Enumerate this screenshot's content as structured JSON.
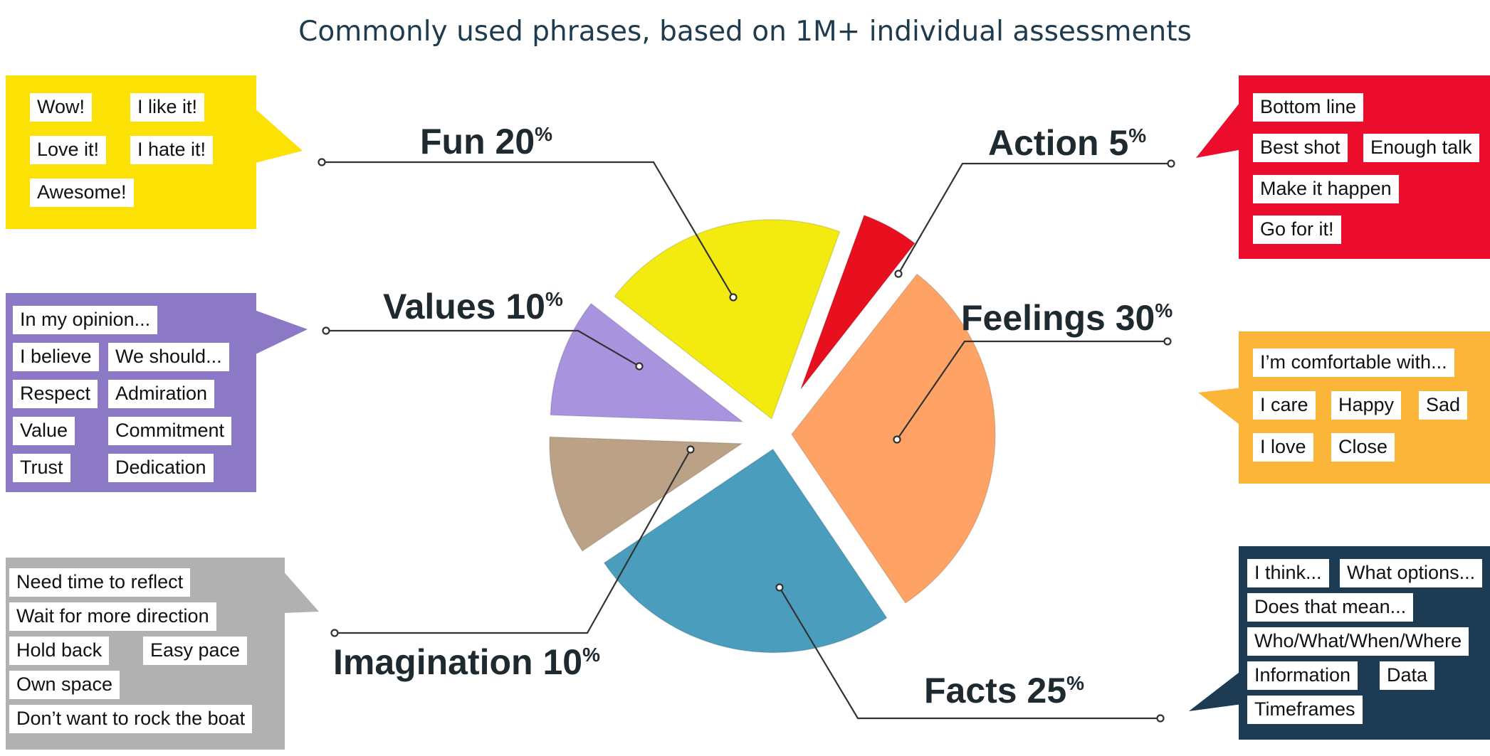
{
  "title": "Commonly used phrases, based on 1M+ individual assessments",
  "chart_data": {
    "type": "pie",
    "exploded": true,
    "slices": [
      {
        "name": "Action",
        "value": 5,
        "color": "#e8101e"
      },
      {
        "name": "Feelings",
        "value": 30,
        "color": "#ffa265"
      },
      {
        "name": "Facts",
        "value": 25,
        "color": "#4a9dbd"
      },
      {
        "name": "Imagination",
        "value": 10,
        "color": "#bba286"
      },
      {
        "name": "Values",
        "value": 10,
        "color": "#a893de"
      },
      {
        "name": "Fun",
        "value": 20,
        "color": "#f3ea10"
      }
    ]
  },
  "labels": {
    "fun": {
      "name": "Fun",
      "pct": "20",
      "unit": "%"
    },
    "action": {
      "name": "Action",
      "pct": "5",
      "unit": "%"
    },
    "values": {
      "name": "Values",
      "pct": "10",
      "unit": "%"
    },
    "feelings": {
      "name": "Feelings",
      "pct": "30",
      "unit": "%"
    },
    "imagination": {
      "name": "Imagination",
      "pct": "10",
      "unit": "%"
    },
    "facts": {
      "name": "Facts",
      "pct": "25",
      "unit": "%"
    }
  },
  "boxes": {
    "fun": {
      "color": "#fbe104",
      "phrases": [
        "Wow!",
        "I like it!",
        "Love it!",
        "I hate it!",
        "Awesome!"
      ]
    },
    "values": {
      "color": "#8c79c6",
      "phrases": [
        "In my opinion...",
        "I believe",
        "We should...",
        "Respect",
        "Admiration",
        "Value",
        "Commitment",
        "Trust",
        "Dedication"
      ]
    },
    "imagination": {
      "color": "#b1b1b1",
      "phrases": [
        "Need time to reflect",
        "Wait for more direction",
        "Hold back",
        "Easy pace",
        "Own space",
        "Don’t want to rock the boat"
      ]
    },
    "action": {
      "color": "#ec0d2d",
      "phrases": [
        "Bottom line",
        "Best shot",
        "Enough talk",
        "Make it happen",
        "Go for it!"
      ]
    },
    "feelings": {
      "color": "#fbb538",
      "phrases": [
        "I’m comfortable with...",
        "I care",
        "Happy",
        "Sad",
        "I love",
        "Close"
      ]
    },
    "facts": {
      "color": "#1d3b53",
      "phrases": [
        "I think...",
        "What options...",
        "Does that mean...",
        "Who/What/When/Where",
        "Information",
        "Data",
        "Timeframes"
      ]
    }
  }
}
